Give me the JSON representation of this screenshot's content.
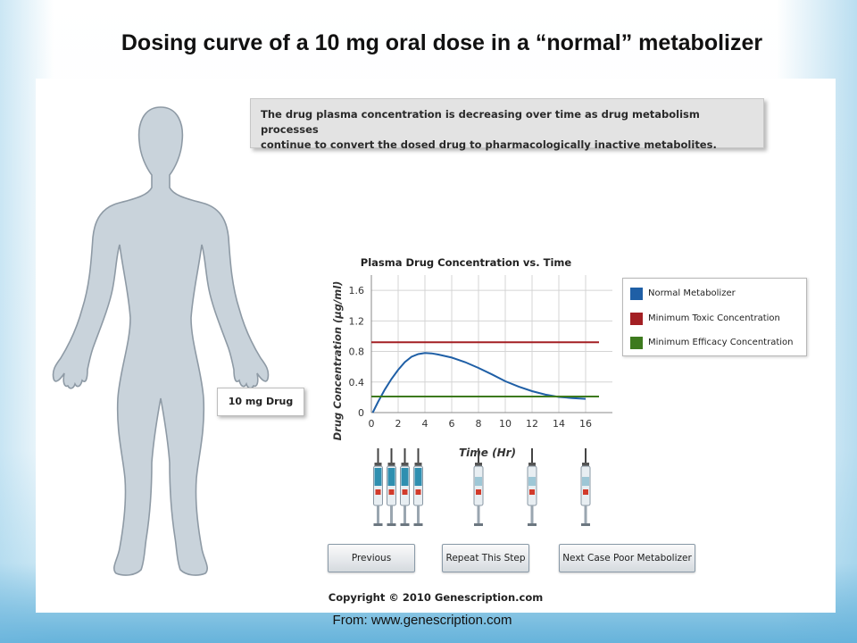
{
  "slide": {
    "title": "Dosing curve of a 10 mg oral dose in a “normal” metabolizer",
    "source": "From: www.genescription.com"
  },
  "info_box": {
    "text_line1": "The drug plasma concentration is decreasing over time as drug metabolism processes",
    "text_line2": "continue to convert the dosed drug to pharmacologically inactive metabolites."
  },
  "dose_label": "10 mg Drug",
  "buttons": {
    "previous": "Previous",
    "repeat": "Repeat This Step",
    "next": "Next Case Poor Metabolizer"
  },
  "copyright": "Copyright © 2010 Genescription.com",
  "icons": [
    "human-silhouette-icon",
    "syringe-icon"
  ],
  "colors": {
    "normal": "#1f5fa6",
    "toxic": "#a31f23",
    "efficacy": "#3d7a1e",
    "silhouette_fill": "#c9d3db",
    "silhouette_stroke": "#8e9aa5"
  },
  "chart_data": {
    "type": "line",
    "title": "Plasma Drug Concentration vs. Time",
    "xlabel": "Time (Hr)",
    "ylabel": "Drug Concentration (µg/ml)",
    "xlim": [
      0,
      18
    ],
    "ylim": [
      0,
      1.8
    ],
    "xticks": [
      0,
      2,
      4,
      6,
      8,
      10,
      12,
      14,
      16
    ],
    "yticks": [
      0,
      0.4,
      0.8,
      1.2,
      1.6
    ],
    "grid": true,
    "legend_position": "right",
    "series": [
      {
        "name": "Normal Metabolizer",
        "color": "#1f5fa6",
        "points": [
          [
            0.1,
            0.0
          ],
          [
            0.5,
            0.14
          ],
          [
            1,
            0.3
          ],
          [
            1.5,
            0.44
          ],
          [
            2,
            0.56
          ],
          [
            2.5,
            0.66
          ],
          [
            3,
            0.73
          ],
          [
            3.5,
            0.765
          ],
          [
            4,
            0.78
          ],
          [
            4.5,
            0.775
          ],
          [
            5,
            0.76
          ],
          [
            6,
            0.72
          ],
          [
            7,
            0.66
          ],
          [
            8,
            0.585
          ],
          [
            9,
            0.5
          ],
          [
            10,
            0.41
          ],
          [
            11,
            0.34
          ],
          [
            12,
            0.28
          ],
          [
            13,
            0.235
          ],
          [
            14,
            0.205
          ],
          [
            15,
            0.19
          ],
          [
            16,
            0.18
          ]
        ]
      },
      {
        "name": "Minimum Toxic Concentration",
        "color": "#a31f23",
        "points": [
          [
            0,
            0.92
          ],
          [
            17,
            0.92
          ]
        ]
      },
      {
        "name": "Minimum Efficacy Concentration",
        "color": "#3d7a1e",
        "points": [
          [
            0,
            0.21
          ],
          [
            17,
            0.21
          ]
        ]
      }
    ],
    "syringe_times": [
      0.5,
      1.5,
      2.5,
      3.5,
      8,
      12,
      16
    ]
  }
}
